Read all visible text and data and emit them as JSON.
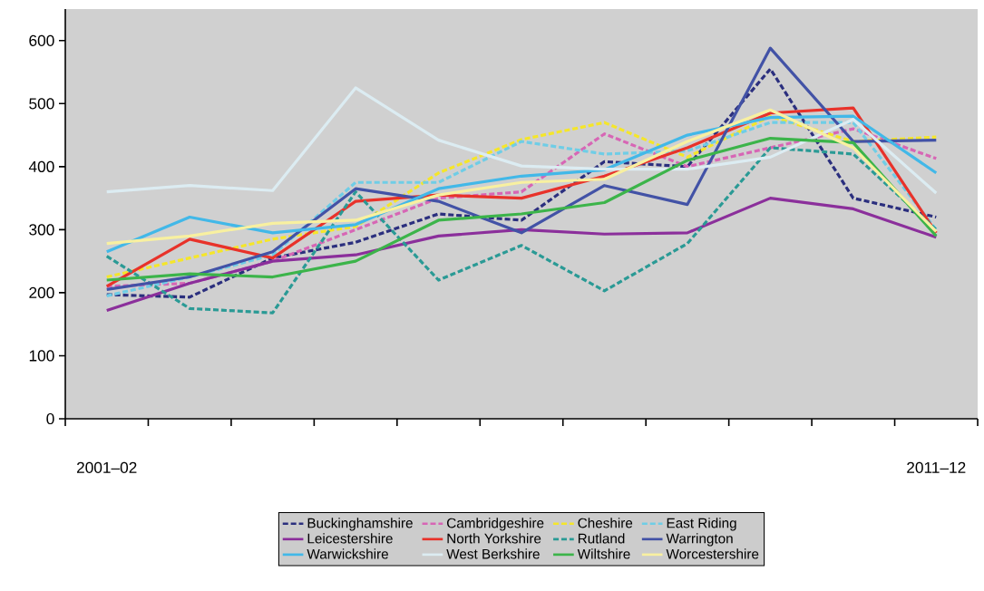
{
  "chart_data": {
    "type": "line",
    "categories": [
      "2001–02",
      null,
      null,
      null,
      null,
      null,
      null,
      null,
      null,
      null,
      "2011–12"
    ],
    "ylim": [
      0,
      650
    ],
    "yticks": [
      0,
      100,
      200,
      300,
      400,
      500,
      600
    ],
    "legend": "bottom",
    "marker": "none",
    "series": [
      {
        "name": "Buckinghamshire",
        "color": "#2b2f7e",
        "line_style": "dashed",
        "values": [
          197,
          193,
          255,
          280,
          325,
          315,
          408,
          400,
          555,
          350,
          320
        ]
      },
      {
        "name": "Cambridgeshire",
        "color": "#d766b5",
        "line_style": "dashed",
        "values": [
          210,
          215,
          250,
          300,
          350,
          360,
          452,
          400,
          430,
          460,
          413
        ]
      },
      {
        "name": "Cheshire",
        "color": "#f5e62a",
        "line_style": "dashed",
        "values": [
          225,
          255,
          285,
          305,
          390,
          443,
          470,
          415,
          480,
          440,
          447
        ]
      },
      {
        "name": "East Riding",
        "color": "#6fcde6",
        "line_style": "dashed",
        "values": [
          195,
          225,
          260,
          375,
          375,
          440,
          420,
          425,
          470,
          470,
          300
        ]
      },
      {
        "name": "Leicestershire",
        "color": "#8b2f9b",
        "line_style": "solid",
        "values": [
          172,
          215,
          250,
          260,
          290,
          300,
          293,
          295,
          350,
          333,
          288
        ]
      },
      {
        "name": "North Yorkshire",
        "color": "#e8322a",
        "line_style": "solid",
        "values": [
          210,
          285,
          255,
          345,
          355,
          350,
          385,
          430,
          485,
          493,
          295
        ]
      },
      {
        "name": "Rutland",
        "color": "#2a9a95",
        "line_style": "dashed",
        "values": [
          258,
          175,
          168,
          360,
          220,
          275,
          203,
          278,
          430,
          420,
          300
        ]
      },
      {
        "name": "Warrington",
        "color": "#4252a6",
        "line_style": "solid",
        "values": [
          205,
          225,
          265,
          365,
          345,
          295,
          370,
          340,
          588,
          440,
          442
        ]
      },
      {
        "name": "Warwickshire",
        "color": "#42b8e8",
        "line_style": "solid",
        "values": [
          265,
          320,
          295,
          308,
          365,
          385,
          395,
          450,
          478,
          480,
          390
        ]
      },
      {
        "name": "West Berkshire",
        "color": "#dcecf2",
        "line_style": "solid",
        "values": [
          360,
          370,
          362,
          525,
          442,
          401,
          396,
          396,
          415,
          475,
          358
        ]
      },
      {
        "name": "Wiltshire",
        "color": "#3cb44a",
        "line_style": "solid",
        "values": [
          220,
          230,
          225,
          250,
          315,
          325,
          343,
          410,
          445,
          438,
          290
        ]
      },
      {
        "name": "Worcestershire",
        "color": "#f8f0a0",
        "line_style": "solid",
        "values": [
          278,
          290,
          310,
          315,
          355,
          375,
          380,
          440,
          490,
          430,
          297
        ]
      }
    ]
  }
}
